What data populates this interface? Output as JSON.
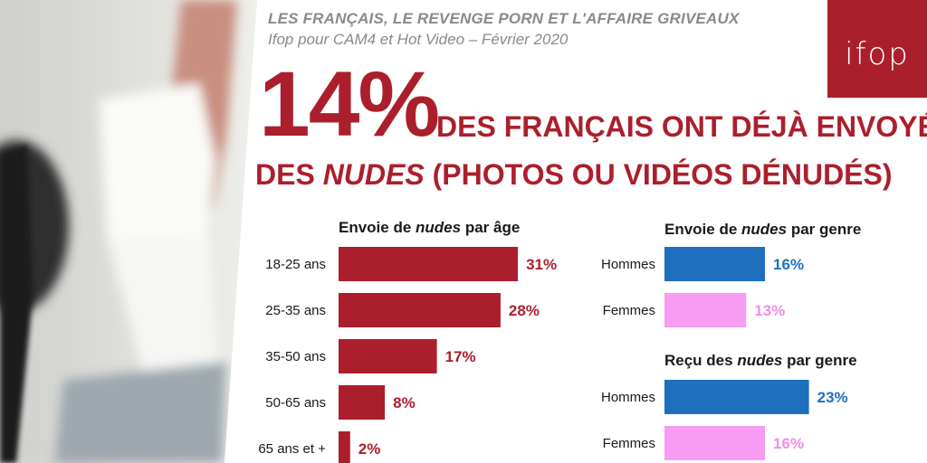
{
  "header": {
    "title": "LES FRANÇAIS, LE REVENGE PORN ET L'AFFAIRE GRIVEAUX",
    "subtitle": "Ifop pour CAM4 et Hot Video – Février 2020"
  },
  "logo": {
    "text": "ifop"
  },
  "headline": {
    "big_percent": "14%",
    "line1": "DES FRANÇAIS ONT DÉJÀ ENVOYÉ",
    "line2_pre": "DES ",
    "line2_em": "NUDES",
    "line2_post": " (PHOTOS OU VIDÉOS DÉNUDÉS)"
  },
  "colors": {
    "accent": "#ab1f2c",
    "hommes": "#1f6fbf",
    "femmes": "#f79cf2",
    "femmes_label": "#f08ee8"
  },
  "chart_data": [
    {
      "type": "bar",
      "title_pre": "Envoie de ",
      "title_em": "nudes",
      "title_post": " par âge",
      "categories": [
        "18-25 ans",
        "25-35 ans",
        "35-50 ans",
        "50-65 ans",
        "65 ans et +"
      ],
      "values": [
        31,
        28,
        17,
        8,
        2
      ],
      "value_labels": [
        "31%",
        "28%",
        "17%",
        "8%",
        "2%"
      ],
      "orientation": "horizontal"
    },
    {
      "type": "bar",
      "title_pre": "Envoie de ",
      "title_em": "nudes",
      "title_post": " par genre",
      "categories": [
        "Hommes",
        "Femmes"
      ],
      "values": [
        16,
        13
      ],
      "value_labels": [
        "16%",
        "13%"
      ],
      "orientation": "horizontal"
    },
    {
      "type": "bar",
      "title_pre": "Reçu des ",
      "title_em": "nudes",
      "title_post": " par genre",
      "categories": [
        "Hommes",
        "Femmes"
      ],
      "values": [
        23,
        16
      ],
      "value_labels": [
        "23%",
        "16%"
      ],
      "orientation": "horizontal"
    }
  ]
}
